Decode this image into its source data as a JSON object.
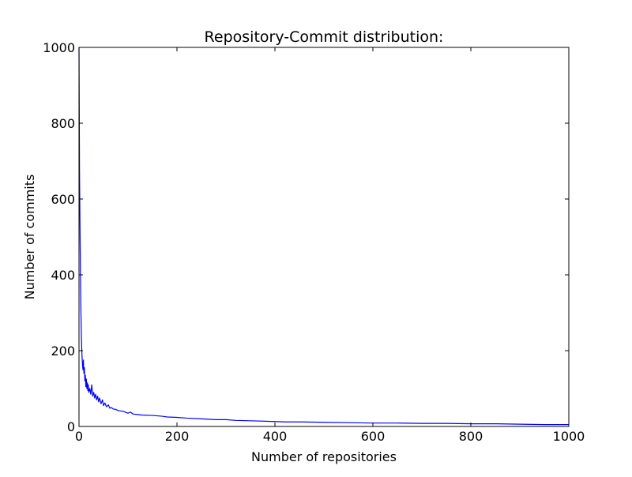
{
  "chart_data": {
    "type": "line",
    "title": "Repository-Commit distribution:",
    "xlabel": "Number of repositories",
    "ylabel": "Number of commits",
    "xlim": [
      0,
      1000
    ],
    "ylim": [
      0,
      1000
    ],
    "xticks": [
      0,
      200,
      400,
      600,
      800,
      1000
    ],
    "yticks": [
      0,
      200,
      400,
      600,
      800,
      1000
    ],
    "grid": false,
    "series": [
      {
        "color": "#0000ff",
        "x": [
          0,
          1,
          2,
          3,
          4,
          5,
          6,
          7,
          8,
          9,
          10,
          11,
          12,
          13,
          14,
          15,
          16,
          17,
          18,
          19,
          20,
          22,
          24,
          26,
          28,
          30,
          32,
          34,
          36,
          38,
          40,
          42,
          45,
          48,
          50,
          53,
          56,
          60,
          63,
          66,
          70,
          75,
          80,
          90,
          100,
          105,
          110,
          115,
          130,
          150,
          170,
          180,
          200,
          220,
          250,
          280,
          300,
          320,
          350,
          400,
          420,
          450,
          500,
          550,
          600,
          650,
          700,
          750,
          800,
          850,
          900,
          950,
          1000
        ],
        "y": [
          1000,
          680,
          530,
          395,
          300,
          230,
          190,
          165,
          150,
          175,
          140,
          155,
          120,
          135,
          105,
          125,
          100,
          115,
          95,
          110,
          90,
          100,
          85,
          110,
          80,
          90,
          75,
          85,
          70,
          80,
          65,
          75,
          60,
          70,
          55,
          62,
          52,
          57,
          48,
          50,
          46,
          45,
          42,
          40,
          35,
          38,
          33,
          32,
          30,
          29,
          27,
          25,
          24,
          22,
          20,
          18,
          18,
          16,
          15,
          13,
          12,
          12,
          11,
          10,
          9,
          9,
          8,
          8,
          7,
          7,
          6,
          5,
          5
        ]
      }
    ]
  }
}
